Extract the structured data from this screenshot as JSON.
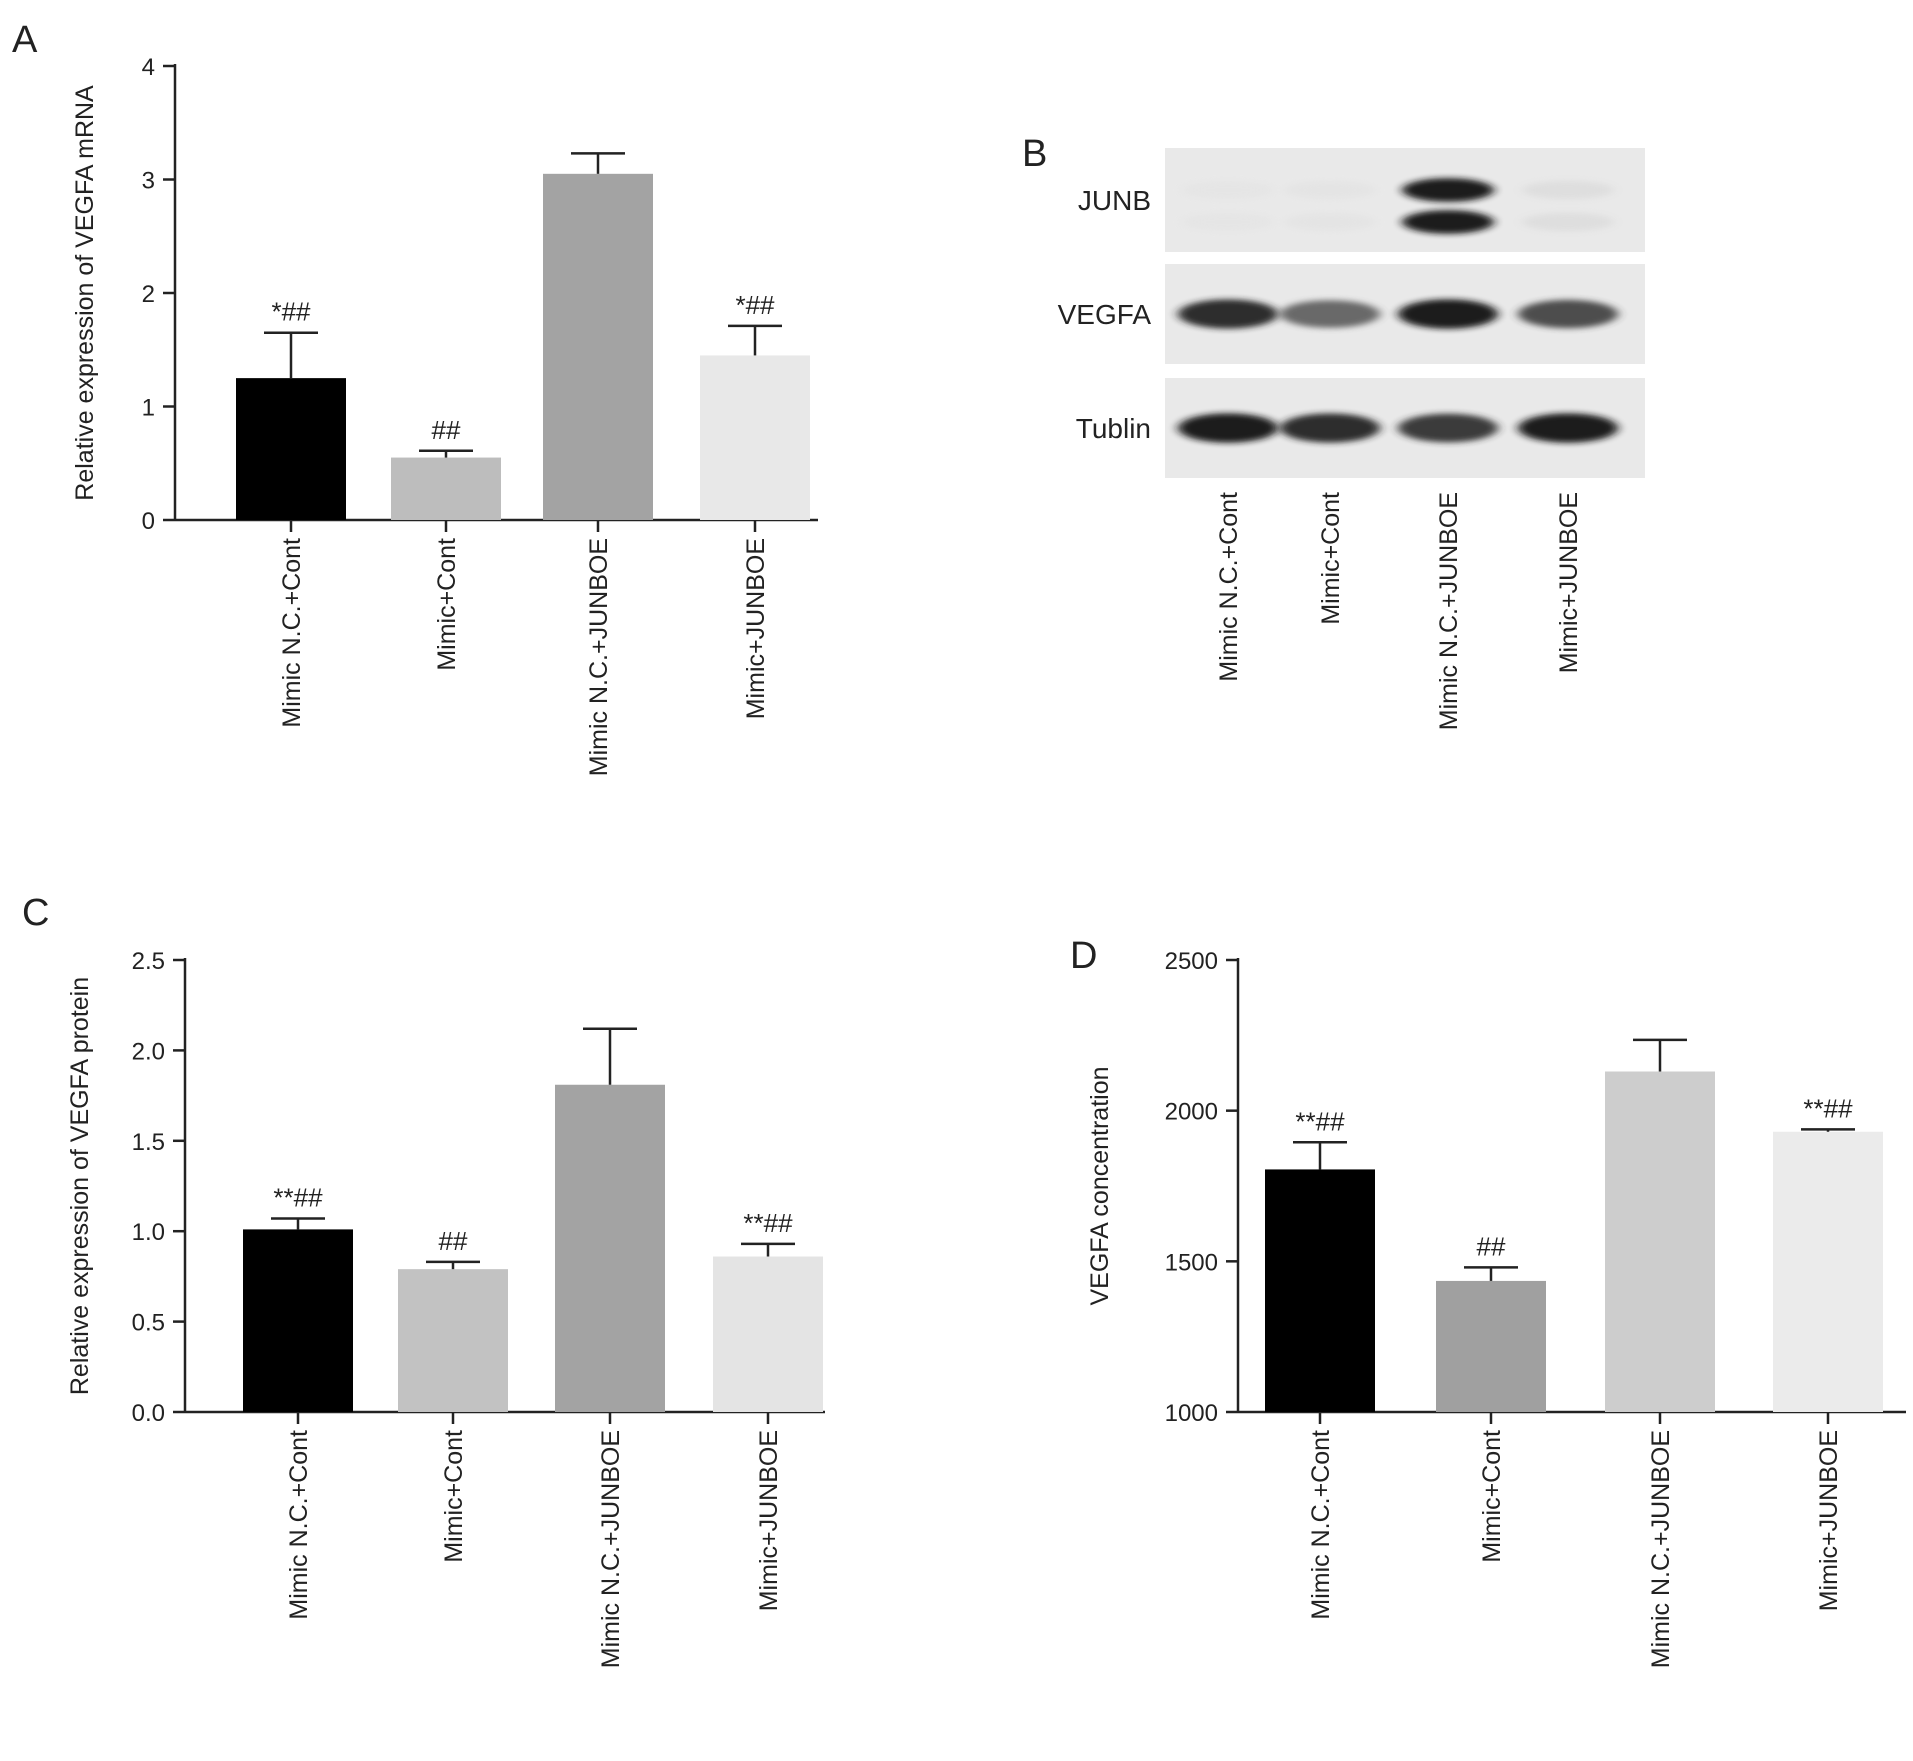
{
  "panel_labels": [
    "A",
    "B",
    "C",
    "D"
  ],
  "colors": {
    "axis": "#222222",
    "bar_fills_A": [
      "#000000",
      "#bdbdbd",
      "#a3a3a3",
      "#e8e8e8"
    ],
    "bar_fills_C": [
      "#000000",
      "#c2c2c2",
      "#a3a3a3",
      "#e4e4e4"
    ],
    "bar_fills_D": [
      "#000000",
      "#a0a0a0",
      "#cdcdcd",
      "#ebebeb"
    ],
    "blot_background": "#e9e9e9"
  },
  "chart_data": [
    {
      "panel": "A",
      "type": "bar",
      "categories": [
        "Mimic N.C.+Cont",
        "Mimic+Cont",
        "Mimic N.C.+JUNBOE",
        "Mimic+JUNBOE"
      ],
      "values": [
        1.25,
        0.55,
        3.05,
        1.45
      ],
      "errors": [
        0.4,
        0.06,
        0.18,
        0.26
      ],
      "annotations": [
        "*##",
        "##",
        "",
        "*##"
      ],
      "ylabel": "Relative expression of VEGFA mRNA",
      "xlabel": "",
      "ylim": [
        0,
        4
      ],
      "yticks": [
        "0",
        "1",
        "2",
        "3",
        "4"
      ],
      "grid": false
    },
    {
      "panel": "C",
      "type": "bar",
      "categories": [
        "Mimic N.C.+Cont",
        "Mimic+Cont",
        "Mimic N.C.+JUNBOE",
        "Mimic+JUNBOE"
      ],
      "values": [
        1.01,
        0.79,
        1.81,
        0.86
      ],
      "errors": [
        0.06,
        0.04,
        0.31,
        0.07
      ],
      "annotations": [
        "**##",
        "##",
        "",
        "**##"
      ],
      "ylabel": "Relative expression of VEGFA protein",
      "xlabel": "",
      "ylim": [
        0,
        2.5
      ],
      "yticks": [
        "0.0",
        "0.5",
        "1.0",
        "1.5",
        "2.0",
        "2.5"
      ],
      "grid": false
    },
    {
      "panel": "D",
      "type": "bar",
      "categories": [
        "Mimic N.C.+Cont",
        "Mimic+Cont",
        "Mimic N.C.+JUNBOE",
        "Mimic+JUNBOE"
      ],
      "values": [
        1805,
        1435,
        2130,
        1930
      ],
      "errors": [
        90,
        45,
        105,
        8
      ],
      "annotations": [
        "**##",
        "##",
        "",
        "**##"
      ],
      "ylabel": "VEGFA concentration",
      "xlabel": "",
      "ylim": [
        1000,
        2500
      ],
      "yticks": [
        "1000",
        "1500",
        "2000",
        "2500"
      ],
      "grid": false
    }
  ],
  "western_blot": {
    "panel": "B",
    "rows": [
      "JUNB",
      "VEGFA",
      "Tublin"
    ],
    "lanes": [
      "Mimic N.C.+Cont",
      "Mimic+Cont",
      "Mimic N.C.+JUNBOE",
      "Mimic+JUNBOE"
    ],
    "band_intensity": {
      "JUNB": [
        0.05,
        0.06,
        0.95,
        0.12
      ],
      "VEGFA": [
        0.9,
        0.7,
        0.95,
        0.8
      ],
      "Tublin": [
        0.95,
        0.9,
        0.85,
        0.95
      ]
    }
  }
}
